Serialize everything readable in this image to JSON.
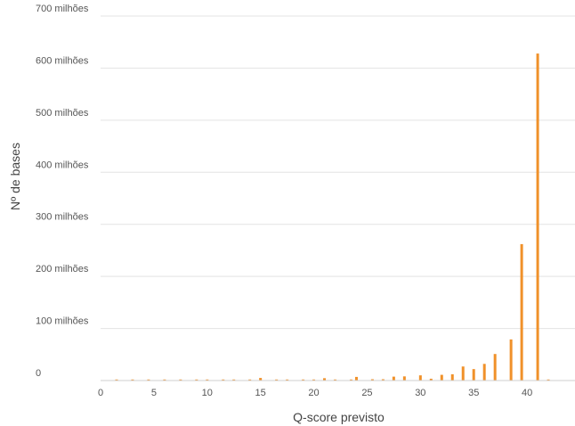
{
  "chart_data": {
    "type": "bar",
    "xlabel": "Q-score previsto",
    "ylabel": "Nº de bases",
    "xlim": [
      0,
      44.5
    ],
    "ylim": [
      0,
      700000000
    ],
    "grid": true,
    "bar_color": "#f0912a",
    "grid_color": "#e3e3e3",
    "y_ticks": [
      {
        "value": 0,
        "label": "0"
      },
      {
        "value": 100000000,
        "label": "100 milhões"
      },
      {
        "value": 200000000,
        "label": "200 milhões"
      },
      {
        "value": 300000000,
        "label": "300 milhões"
      },
      {
        "value": 400000000,
        "label": "400 milhões"
      },
      {
        "value": 500000000,
        "label": "500 milhões"
      },
      {
        "value": 600000000,
        "label": "600 milhões"
      },
      {
        "value": 700000000,
        "label": "700 milhões"
      }
    ],
    "x_ticks": [
      {
        "value": 0,
        "label": "0"
      },
      {
        "value": 5,
        "label": "5"
      },
      {
        "value": 10,
        "label": "10"
      },
      {
        "value": 15,
        "label": "15"
      },
      {
        "value": 20,
        "label": "20"
      },
      {
        "value": 25,
        "label": "25"
      },
      {
        "value": 30,
        "label": "30"
      },
      {
        "value": 35,
        "label": "35"
      },
      {
        "value": 40,
        "label": "40"
      }
    ],
    "x": [
      1.5,
      3,
      4.5,
      6,
      7.5,
      9,
      10,
      11.5,
      12.5,
      14,
      15,
      16.5,
      17.5,
      19,
      20,
      21,
      22,
      23.5,
      24,
      25.5,
      26.5,
      27.5,
      28.5,
      30,
      31,
      32,
      33,
      34,
      35,
      36,
      37,
      38.5,
      39.5,
      41,
      42
    ],
    "values": [
      300000,
      400000,
      500000,
      600000,
      300000,
      200000,
      500000,
      400000,
      500000,
      700000,
      5000000,
      500000,
      800000,
      1000000,
      1500000,
      4500000,
      1800000,
      1800000,
      7000000,
      2500000,
      2500000,
      7500000,
      8000000,
      10000000,
      3500000,
      11000000,
      12000000,
      27000000,
      22000000,
      32000000,
      51000000,
      79000000,
      262000000,
      628000000,
      0
    ]
  }
}
